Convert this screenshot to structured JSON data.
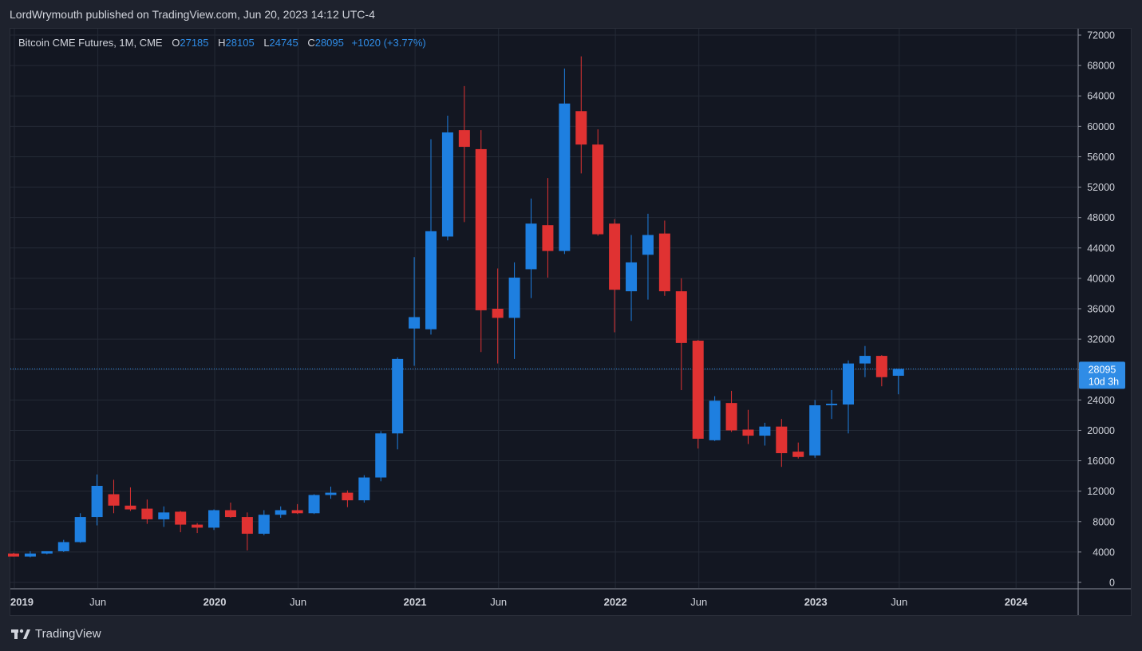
{
  "header": {
    "published_text": "LordWrymouth published on TradingView.com, Jun 20, 2023 14:12 UTC-4"
  },
  "legend": {
    "symbol": "Bitcoin CME Futures, 1M, CME",
    "o_label": "O",
    "o": "27185",
    "h_label": "H",
    "h": "28105",
    "l_label": "L",
    "l": "24745",
    "c_label": "C",
    "c": "28095",
    "change": "+1020 (+3.77%)"
  },
  "price_tag": {
    "price": "28095",
    "countdown": "10d 3h"
  },
  "footer": {
    "brand": "TradingView"
  },
  "colors": {
    "up": "#1e7fe0",
    "down": "#e03232",
    "bg": "#131722",
    "grid": "#242a36",
    "axis_text": "#d1d4dc"
  },
  "chart_data": {
    "type": "candlestick",
    "title": "Bitcoin CME Futures, 1M, CME",
    "ylim": [
      0,
      72000
    ],
    "y_ticks": [
      0,
      4000,
      8000,
      12000,
      16000,
      20000,
      24000,
      28000,
      32000,
      36000,
      40000,
      44000,
      48000,
      52000,
      56000,
      60000,
      64000,
      68000,
      72000
    ],
    "y_tick_labels": [
      "0",
      "4000",
      "8000",
      "12000",
      "16000",
      "20000",
      "24000",
      "28000",
      "32000",
      "36000",
      "40000",
      "44000",
      "48000",
      "52000",
      "56000",
      "60000",
      "64000",
      "68000",
      "72000"
    ],
    "x_labels": [
      {
        "label": "2019",
        "month_index": 0
      },
      {
        "label": "Jun",
        "month_index": 5
      },
      {
        "label": "2020",
        "month_index": 12
      },
      {
        "label": "Jun",
        "month_index": 17
      },
      {
        "label": "2021",
        "month_index": 24
      },
      {
        "label": "Jun",
        "month_index": 29
      },
      {
        "label": "2022",
        "month_index": 36
      },
      {
        "label": "Jun",
        "month_index": 41
      },
      {
        "label": "2023",
        "month_index": 48
      },
      {
        "label": "Jun",
        "month_index": 53
      },
      {
        "label": "2024",
        "month_index": 60
      }
    ],
    "last_price": 28095,
    "candles": [
      {
        "m": "2019-01",
        "o": 3800,
        "h": 3900,
        "l": 3400,
        "c": 3400
      },
      {
        "m": "2019-02",
        "o": 3400,
        "h": 4100,
        "l": 3300,
        "c": 3800
      },
      {
        "m": "2019-03",
        "o": 3800,
        "h": 4100,
        "l": 3700,
        "c": 4100
      },
      {
        "m": "2019-04",
        "o": 4100,
        "h": 5600,
        "l": 4000,
        "c": 5300
      },
      {
        "m": "2019-05",
        "o": 5300,
        "h": 9100,
        "l": 5200,
        "c": 8600
      },
      {
        "m": "2019-06",
        "o": 8600,
        "h": 14200,
        "l": 7500,
        "c": 12700
      },
      {
        "m": "2019-07",
        "o": 11600,
        "h": 13500,
        "l": 9100,
        "c": 10100
      },
      {
        "m": "2019-08",
        "o": 10100,
        "h": 12500,
        "l": 9400,
        "c": 9600
      },
      {
        "m": "2019-09",
        "o": 9700,
        "h": 10900,
        "l": 7700,
        "c": 8300
      },
      {
        "m": "2019-10",
        "o": 8300,
        "h": 10000,
        "l": 7300,
        "c": 9200
      },
      {
        "m": "2019-11",
        "o": 9300,
        "h": 9400,
        "l": 6600,
        "c": 7600
      },
      {
        "m": "2019-12",
        "o": 7600,
        "h": 7800,
        "l": 6500,
        "c": 7200
      },
      {
        "m": "2020-01",
        "o": 7200,
        "h": 9600,
        "l": 6900,
        "c": 9500
      },
      {
        "m": "2020-02",
        "o": 9500,
        "h": 10500,
        "l": 8500,
        "c": 8600
      },
      {
        "m": "2020-03",
        "o": 8600,
        "h": 9200,
        "l": 4200,
        "c": 6400
      },
      {
        "m": "2020-04",
        "o": 6400,
        "h": 9500,
        "l": 6200,
        "c": 8900
      },
      {
        "m": "2020-05",
        "o": 8900,
        "h": 10000,
        "l": 8500,
        "c": 9500
      },
      {
        "m": "2020-06",
        "o": 9500,
        "h": 10300,
        "l": 9000,
        "c": 9100
      },
      {
        "m": "2020-07",
        "o": 9100,
        "h": 11600,
        "l": 9000,
        "c": 11500
      },
      {
        "m": "2020-08",
        "o": 11500,
        "h": 12600,
        "l": 11000,
        "c": 11800
      },
      {
        "m": "2020-09",
        "o": 11800,
        "h": 12100,
        "l": 9900,
        "c": 10800
      },
      {
        "m": "2020-10",
        "o": 10800,
        "h": 14100,
        "l": 10500,
        "c": 13800
      },
      {
        "m": "2020-11",
        "o": 13800,
        "h": 19900,
        "l": 13300,
        "c": 19600
      },
      {
        "m": "2020-12",
        "o": 19600,
        "h": 29600,
        "l": 17500,
        "c": 29400
      },
      {
        "m": "2021-01",
        "o": 33400,
        "h": 42800,
        "l": 28500,
        "c": 34900
      },
      {
        "m": "2021-02",
        "o": 33300,
        "h": 58300,
        "l": 32600,
        "c": 46200
      },
      {
        "m": "2021-03",
        "o": 45500,
        "h": 61400,
        "l": 45000,
        "c": 59200
      },
      {
        "m": "2021-04",
        "o": 59500,
        "h": 65300,
        "l": 47400,
        "c": 57300
      },
      {
        "m": "2021-05",
        "o": 57000,
        "h": 59500,
        "l": 30300,
        "c": 35800
      },
      {
        "m": "2021-06",
        "o": 36000,
        "h": 41300,
        "l": 28800,
        "c": 34800
      },
      {
        "m": "2021-07",
        "o": 34800,
        "h": 42100,
        "l": 29400,
        "c": 40100
      },
      {
        "m": "2021-08",
        "o": 41200,
        "h": 50500,
        "l": 37400,
        "c": 47200
      },
      {
        "m": "2021-09",
        "o": 47000,
        "h": 53200,
        "l": 40100,
        "c": 43600
      },
      {
        "m": "2021-10",
        "o": 43600,
        "h": 67600,
        "l": 43200,
        "c": 63000
      },
      {
        "m": "2021-11",
        "o": 62000,
        "h": 69200,
        "l": 53800,
        "c": 57600
      },
      {
        "m": "2021-12",
        "o": 57600,
        "h": 59600,
        "l": 45600,
        "c": 45800
      },
      {
        "m": "2022-01",
        "o": 47200,
        "h": 47800,
        "l": 32900,
        "c": 38500
      },
      {
        "m": "2022-02",
        "o": 38300,
        "h": 45700,
        "l": 34400,
        "c": 42100
      },
      {
        "m": "2022-03",
        "o": 43100,
        "h": 48500,
        "l": 37200,
        "c": 45700
      },
      {
        "m": "2022-04",
        "o": 45900,
        "h": 47600,
        "l": 37700,
        "c": 38300
      },
      {
        "m": "2022-05",
        "o": 38300,
        "h": 40000,
        "l": 25300,
        "c": 31500
      },
      {
        "m": "2022-06",
        "o": 31800,
        "h": 31900,
        "l": 17600,
        "c": 18900
      },
      {
        "m": "2022-07",
        "o": 18700,
        "h": 24500,
        "l": 18600,
        "c": 23900
      },
      {
        "m": "2022-08",
        "o": 23600,
        "h": 25200,
        "l": 19800,
        "c": 20000
      },
      {
        "m": "2022-09",
        "o": 20100,
        "h": 22700,
        "l": 18200,
        "c": 19300
      },
      {
        "m": "2022-10",
        "o": 19300,
        "h": 21000,
        "l": 18000,
        "c": 20500
      },
      {
        "m": "2022-11",
        "o": 20500,
        "h": 21500,
        "l": 15200,
        "c": 17000
      },
      {
        "m": "2022-12",
        "o": 17200,
        "h": 18400,
        "l": 16300,
        "c": 16500
      },
      {
        "m": "2023-01",
        "o": 16700,
        "h": 24000,
        "l": 16400,
        "c": 23300
      },
      {
        "m": "2023-02",
        "o": 23300,
        "h": 25300,
        "l": 21500,
        "c": 23500
      },
      {
        "m": "2023-03",
        "o": 23400,
        "h": 29200,
        "l": 19600,
        "c": 28800
      },
      {
        "m": "2023-04",
        "o": 28800,
        "h": 31100,
        "l": 27000,
        "c": 29800
      },
      {
        "m": "2023-05",
        "o": 29800,
        "h": 29900,
        "l": 25800,
        "c": 27000
      },
      {
        "m": "2023-06",
        "o": 27185,
        "h": 28105,
        "l": 24745,
        "c": 28095
      }
    ]
  }
}
